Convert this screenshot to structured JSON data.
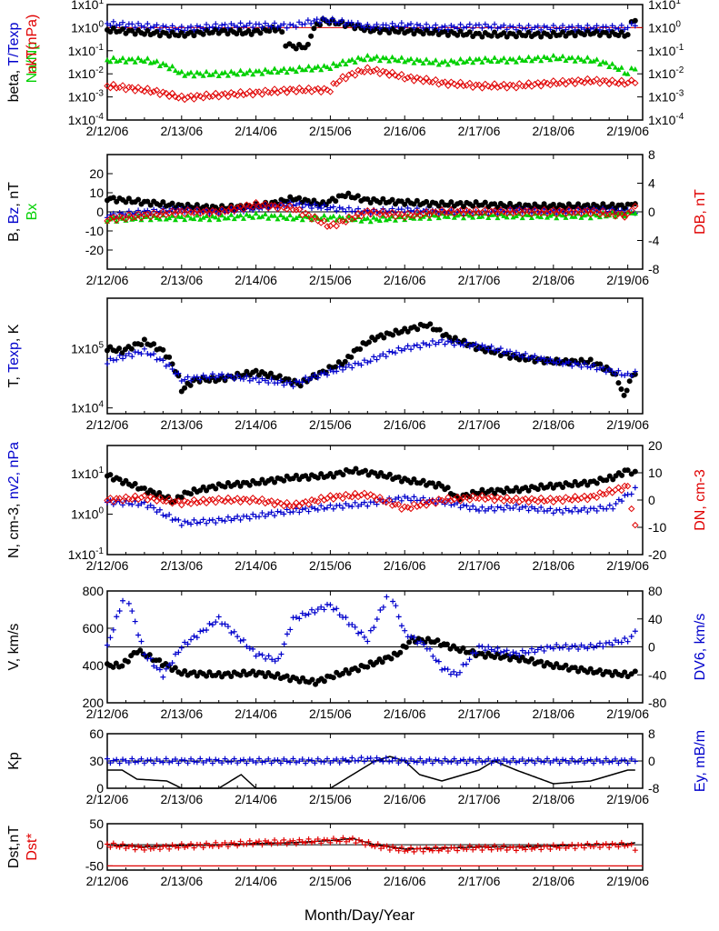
{
  "figure": {
    "xlabel": "Month/Day/Year",
    "date_labels": [
      "2/12/06",
      "2/13/06",
      "2/14/06",
      "2/15/06",
      "2/16/06",
      "2/17/06",
      "2/18/06",
      "2/19/06"
    ]
  },
  "colors": {
    "black": "#000000",
    "red": "#e00000",
    "blue": "#0000cc",
    "green": "#00d000"
  },
  "chart_data": [
    {
      "type": "scatter",
      "panel": "beta",
      "ylabel_parts": [
        [
          "beta, ",
          "black"
        ],
        [
          "T/Texp",
          "blue"
        ]
      ],
      "ylabel2_parts": [
        [
          "nkT(nPa)",
          "red"
        ]
      ],
      "ylabel3_parts": [
        [
          "Na/Np",
          "green"
        ]
      ],
      "yscale": "log",
      "ylim": [
        0.0001,
        10
      ],
      "yticks_left": [
        "1x10-4",
        "1x10-3",
        "1x10-2",
        "1x10-1",
        "1x100",
        "1x101"
      ],
      "yticks_right": [
        "1x10-4",
        "1x10-3",
        "1x10-2",
        "1x10-1",
        "1x100",
        "1x101"
      ],
      "hline": 1,
      "series": [
        {
          "name": "beta",
          "color": "black",
          "marker": "dot",
          "x": [
            0,
            0.5,
            1,
            1.5,
            1.9,
            2.3,
            2.4,
            2.5,
            2.7,
            2.9,
            3.5,
            4,
            4.5,
            5,
            5.5,
            6,
            6.5,
            7,
            7.1
          ],
          "y": [
            0.8,
            0.6,
            0.5,
            0.7,
            0.6,
            0.9,
            0.2,
            0.15,
            0.15,
            2,
            0.8,
            0.7,
            0.6,
            0.5,
            0.5,
            0.5,
            0.6,
            0.5,
            2.5
          ]
        },
        {
          "name": "T/Texp",
          "color": "blue",
          "marker": "plus",
          "x": [
            0,
            0.5,
            1,
            1.5,
            2,
            2.5,
            2.9,
            3.5,
            4,
            4.5,
            5,
            5.5,
            6,
            6.5,
            7,
            7.1
          ],
          "y": [
            1.5,
            1.2,
            0.9,
            1.2,
            1.3,
            1.2,
            2.2,
            1.1,
            1.3,
            1.0,
            1.2,
            1.0,
            1.0,
            1.0,
            1.0,
            1.5
          ]
        },
        {
          "name": "nkT(nPa)",
          "color": "red",
          "marker": "diamond",
          "x": [
            0,
            0.5,
            1,
            1.5,
            2,
            2.5,
            3,
            3.5,
            4,
            4.5,
            5,
            5.5,
            6,
            6.5,
            7,
            7.1
          ],
          "y": [
            0.003,
            0.002,
            0.0009,
            0.0012,
            0.0015,
            0.002,
            0.002,
            0.015,
            0.007,
            0.004,
            0.003,
            0.003,
            0.004,
            0.005,
            0.004,
            0.005
          ]
        },
        {
          "name": "Na/Np",
          "color": "green",
          "marker": "tri",
          "x": [
            0,
            0.5,
            1,
            1.5,
            2,
            2.5,
            3,
            3.5,
            4,
            4.5,
            5,
            5.5,
            6,
            6.5,
            7,
            7.1
          ],
          "y": [
            0.04,
            0.04,
            0.01,
            0.01,
            0.012,
            0.015,
            0.02,
            0.05,
            0.04,
            0.03,
            0.04,
            0.04,
            0.05,
            0.04,
            0.01,
            0.02
          ]
        }
      ]
    },
    {
      "type": "scatter",
      "panel": "B",
      "ylabel_parts": [
        [
          "B, ",
          "black"
        ],
        [
          "Bz",
          "blue"
        ],
        [
          ", nT",
          "black"
        ]
      ],
      "ylabel3_parts": [
        [
          "Bx",
          "green"
        ]
      ],
      "ylabel2_parts": [
        [
          "DB, nT",
          "red"
        ]
      ],
      "ylim": [
        -30,
        30
      ],
      "ylim_right": [
        -8,
        8
      ],
      "yticks_left": [
        "-20",
        "-10",
        "0",
        "10",
        "20"
      ],
      "yticks_right": [
        "-8",
        "-4",
        "0",
        "4",
        "8"
      ],
      "hline": 0,
      "series": [
        {
          "name": "B",
          "color": "black",
          "marker": "dot",
          "x": [
            0,
            0.5,
            1,
            1.5,
            2,
            2.3,
            2.5,
            2.9,
            3.2,
            3.5,
            4,
            4.5,
            5,
            5.5,
            6,
            6.5,
            7,
            7.1
          ],
          "y": [
            7,
            5,
            3,
            2,
            3,
            5,
            7,
            4,
            9,
            6,
            5,
            4,
            4,
            3,
            3,
            3,
            3,
            5
          ]
        },
        {
          "name": "Bz",
          "color": "blue",
          "marker": "plus",
          "x": [
            0,
            0.5,
            1,
            1.5,
            2,
            2.5,
            3,
            3.5,
            4,
            4.5,
            5,
            5.5,
            6,
            6.5,
            7,
            7.1
          ],
          "y": [
            -2,
            0,
            1,
            0,
            2,
            4,
            2,
            0,
            1,
            0,
            -1,
            1,
            0,
            1,
            0,
            0
          ]
        },
        {
          "name": "Bx",
          "color": "green",
          "marker": "tri",
          "x": [
            0,
            0.5,
            1,
            1.5,
            2,
            2.5,
            3,
            3.5,
            4,
            4.5,
            5,
            5.5,
            6,
            6.5,
            7,
            7.1
          ],
          "y": [
            -4,
            -3,
            -3,
            -3,
            -2,
            -3,
            -3,
            -4,
            -3,
            -2,
            -2,
            -2,
            -2,
            -2,
            -1,
            0
          ]
        },
        {
          "name": "DB, nT",
          "color": "red",
          "marker": "diamond",
          "axis": "right",
          "x": [
            0,
            0.5,
            1,
            1.5,
            2,
            2.5,
            3,
            3.5,
            4,
            4.5,
            5,
            5.5,
            6,
            6.5,
            7,
            7.1
          ],
          "y": [
            -1,
            -0.5,
            0,
            0,
            1,
            0.5,
            -2,
            0,
            -0.5,
            0,
            0,
            0,
            0,
            0,
            -0.5,
            1
          ]
        }
      ]
    },
    {
      "type": "scatter",
      "panel": "T",
      "ylabel_parts": [
        [
          "T, ",
          "black"
        ],
        [
          "Texp",
          "blue"
        ],
        [
          ", K",
          "black"
        ]
      ],
      "yscale": "log",
      "ylim": [
        8000,
        700000
      ],
      "yticks_left": [
        "1x104",
        "1x105"
      ],
      "series": [
        {
          "name": "T",
          "color": "black",
          "marker": "dot",
          "x": [
            0,
            0.2,
            0.5,
            0.75,
            1,
            1.2,
            1.5,
            2,
            2.4,
            2.6,
            2.9,
            3.2,
            3.6,
            4,
            4.3,
            4.6,
            5,
            5.5,
            6,
            6.5,
            6.8,
            6.95,
            7.1
          ],
          "y": [
            100000,
            90000,
            130000,
            90000,
            20000,
            30000,
            30000,
            40000,
            30000,
            25000,
            40000,
            60000,
            150000,
            200000,
            250000,
            150000,
            100000,
            70000,
            60000,
            60000,
            40000,
            15000,
            40000
          ]
        },
        {
          "name": "Texp",
          "color": "blue",
          "marker": "plus",
          "x": [
            0,
            0.5,
            1,
            1.5,
            2,
            2.5,
            3,
            3.5,
            4,
            4.5,
            5,
            5.5,
            6,
            6.5,
            7,
            7.1
          ],
          "y": [
            60000,
            90000,
            30000,
            35000,
            30000,
            25000,
            40000,
            60000,
            100000,
            130000,
            110000,
            80000,
            60000,
            50000,
            35000,
            40000
          ]
        }
      ]
    },
    {
      "type": "scatter",
      "panel": "N",
      "ylabel_parts": [
        [
          "N, cm-3, ",
          "black"
        ],
        [
          "nv2, nPa",
          "blue"
        ]
      ],
      "ylabel2_parts": [
        [
          "DN, cm-3",
          "red"
        ]
      ],
      "yscale": "log",
      "ylim": [
        0.1,
        50
      ],
      "ylim_right": [
        -20,
        20
      ],
      "yticks_left": [
        "1x10-1",
        "1x100",
        "1x101"
      ],
      "yticks_right": [
        "-20",
        "-10",
        "0",
        "10",
        "20"
      ],
      "series": [
        {
          "name": "N",
          "color": "black",
          "marker": "dot",
          "x": [
            0,
            0.25,
            0.5,
            0.9,
            1,
            1.5,
            2,
            2.5,
            3,
            3.3,
            3.6,
            4,
            4.5,
            4.7,
            5,
            5.5,
            6,
            6.5,
            6.8,
            7,
            7.1
          ],
          "y": [
            9,
            6,
            4,
            2,
            3,
            5,
            6,
            8,
            9,
            12,
            10,
            7,
            5,
            2.5,
            3.5,
            4,
            5,
            6,
            8,
            12,
            10
          ]
        },
        {
          "name": "nv2, nPa",
          "color": "blue",
          "marker": "plus",
          "x": [
            0,
            0.5,
            0.75,
            1,
            1.5,
            2,
            2.5,
            3,
            3.5,
            4,
            4.5,
            5,
            5.5,
            6,
            6.5,
            6.8,
            7,
            7.1
          ],
          "y": [
            2,
            1.8,
            1,
            0.6,
            0.7,
            0.9,
            1.2,
            1.5,
            1.8,
            2.5,
            2,
            1.3,
            1.5,
            1.2,
            1.3,
            1.5,
            3,
            4
          ]
        },
        {
          "name": "DN, cm-3",
          "color": "red",
          "marker": "diamond",
          "axis": "right",
          "x": [
            0,
            0.5,
            1,
            1.5,
            2,
            2.5,
            3,
            3.5,
            4,
            4.5,
            5,
            5.5,
            6,
            6.5,
            7,
            7.1
          ],
          "y": [
            0,
            1,
            -1,
            0,
            0,
            -2,
            1,
            2,
            -3,
            0,
            1,
            0,
            0,
            1,
            5,
            -10
          ]
        }
      ]
    },
    {
      "type": "scatter",
      "panel": "V",
      "ylabel_parts": [
        [
          "V, km/s",
          "black"
        ]
      ],
      "ylabel2_parts": [
        [
          "DV6, km/s",
          "blue"
        ]
      ],
      "ylim": [
        200,
        800
      ],
      "ylim_right": [
        -80,
        80
      ],
      "yticks_left": [
        "200",
        "400",
        "600",
        "800"
      ],
      "yticks_right": [
        "-80",
        "-40",
        "0",
        "40",
        "80"
      ],
      "hline_right": 0,
      "series": [
        {
          "name": "V",
          "color": "black",
          "marker": "dot",
          "x": [
            0,
            0.2,
            0.4,
            0.7,
            1,
            1.5,
            2,
            2.5,
            2.8,
            3,
            3.5,
            3.9,
            4.1,
            4.4,
            4.7,
            5,
            5.5,
            6,
            6.5,
            7,
            7.1
          ],
          "y": [
            400,
            400,
            480,
            420,
            360,
            350,
            360,
            330,
            310,
            340,
            400,
            460,
            540,
            530,
            490,
            460,
            440,
            400,
            370,
            350,
            360
          ]
        },
        {
          "name": "DV6, km/s",
          "color": "blue",
          "marker": "plus",
          "axis": "right",
          "x": [
            0,
            0.25,
            0.5,
            0.75,
            1,
            1.5,
            2,
            2.3,
            2.5,
            3,
            3.5,
            3.8,
            4,
            4.3,
            4.5,
            4.7,
            5,
            5.5,
            6,
            6.5,
            7,
            7.1
          ],
          "y": [
            0,
            80,
            -10,
            -40,
            0,
            40,
            -10,
            -20,
            40,
            60,
            10,
            80,
            20,
            0,
            -30,
            -40,
            0,
            -10,
            0,
            0,
            10,
            20
          ]
        }
      ]
    },
    {
      "type": "line",
      "panel": "Kp",
      "ylabel_parts": [
        [
          "Kp",
          "black"
        ]
      ],
      "ylabel2_parts": [
        [
          "Ey,  mB/m",
          "blue"
        ]
      ],
      "ylim": [
        0,
        60
      ],
      "ylim_right": [
        -8,
        8
      ],
      "yticks_left": [
        "0",
        "30",
        "60"
      ],
      "yticks_right": [
        "-8",
        "0",
        "8"
      ],
      "hline": 30,
      "series": [
        {
          "name": "Kp",
          "color": "black",
          "marker": "line",
          "x": [
            0,
            0.2,
            0.4,
            0.8,
            1,
            1.5,
            1.8,
            2,
            2.5,
            3,
            3.4,
            3.6,
            3.8,
            4,
            4.2,
            4.5,
            5,
            5.2,
            5.5,
            6,
            6.5,
            7,
            7.1
          ],
          "y": [
            20,
            20,
            10,
            8,
            0,
            0,
            15,
            0,
            0,
            0,
            20,
            30,
            35,
            30,
            15,
            8,
            20,
            30,
            20,
            5,
            8,
            20,
            20
          ]
        },
        {
          "name": "Ey,  mB/m",
          "color": "blue",
          "marker": "plus",
          "axis": "right",
          "x": [
            0,
            0.5,
            1,
            1.5,
            2,
            2.5,
            3,
            3.5,
            4,
            4.5,
            5,
            5.5,
            6,
            6.5,
            7,
            7.1
          ],
          "y": [
            0,
            0,
            0,
            0,
            0,
            0,
            0,
            0.5,
            0,
            0,
            0,
            0,
            0,
            0,
            0,
            0
          ]
        }
      ]
    },
    {
      "type": "line",
      "panel": "Dst",
      "ylabel_parts": [
        [
          "Dst,nT",
          "black"
        ]
      ],
      "ylabel2_parts": [
        [
          "Dst*",
          "red"
        ]
      ],
      "ylim": [
        -60,
        50
      ],
      "yticks_left": [
        "-50",
        "0",
        "50"
      ],
      "hline": 0,
      "hline_red": -50,
      "series": [
        {
          "name": "Dst,nT",
          "color": "black",
          "marker": "line",
          "x": [
            0,
            0.5,
            1,
            1.5,
            2,
            2.5,
            3,
            3.3,
            3.6,
            4,
            4.5,
            5,
            5.5,
            6,
            6.5,
            7,
            7.1
          ],
          "y": [
            0,
            -5,
            -2,
            0,
            3,
            5,
            10,
            15,
            0,
            -10,
            -8,
            -5,
            -5,
            -3,
            0,
            2,
            5
          ]
        },
        {
          "name": "Dst*",
          "color": "red",
          "marker": "plus",
          "x": [
            0,
            0.5,
            1,
            1.5,
            2,
            2.5,
            3,
            3.3,
            3.6,
            4,
            4.5,
            5,
            5.5,
            6,
            6.5,
            7,
            7.1
          ],
          "y": [
            0,
            -8,
            -3,
            0,
            5,
            7,
            10,
            12,
            -2,
            -12,
            -10,
            -7,
            -8,
            -5,
            -2,
            0,
            -8
          ]
        }
      ]
    }
  ]
}
